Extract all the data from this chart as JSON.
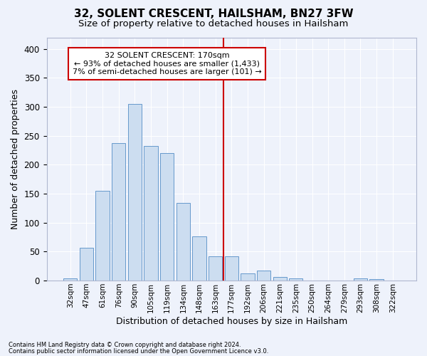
{
  "title1": "32, SOLENT CRESCENT, HAILSHAM, BN27 3FW",
  "title2": "Size of property relative to detached houses in Hailsham",
  "xlabel": "Distribution of detached houses by size in Hailsham",
  "ylabel": "Number of detached properties",
  "bar_labels": [
    "32sqm",
    "47sqm",
    "61sqm",
    "76sqm",
    "90sqm",
    "105sqm",
    "119sqm",
    "134sqm",
    "148sqm",
    "163sqm",
    "177sqm",
    "192sqm",
    "206sqm",
    "221sqm",
    "235sqm",
    "250sqm",
    "264sqm",
    "279sqm",
    "293sqm",
    "308sqm",
    "322sqm"
  ],
  "bar_values": [
    4,
    57,
    155,
    237,
    305,
    232,
    220,
    134,
    76,
    42,
    42,
    12,
    17,
    6,
    4,
    0,
    0,
    0,
    4,
    3,
    0
  ],
  "bar_color": "#ccddf0",
  "bar_edgecolor": "#6699cc",
  "property_line_x": 9.5,
  "annotation_line1": "32 SOLENT CRESCENT: 170sqm",
  "annotation_line2": "← 93% of detached houses are smaller (1,433)",
  "annotation_line3": "7% of semi-detached houses are larger (101) →",
  "annotation_box_color": "#ffffff",
  "annotation_box_edgecolor": "#cc0000",
  "vline_color": "#cc0000",
  "footer1": "Contains HM Land Registry data © Crown copyright and database right 2024.",
  "footer2": "Contains public sector information licensed under the Open Government Licence v3.0.",
  "bg_color": "#eef2fb",
  "grid_color": "#ffffff",
  "ylim": [
    0,
    420
  ],
  "title1_fontsize": 11,
  "title2_fontsize": 9.5,
  "xlabel_fontsize": 9,
  "ylabel_fontsize": 9,
  "annotation_fontsize": 8,
  "footer_fontsize": 6
}
